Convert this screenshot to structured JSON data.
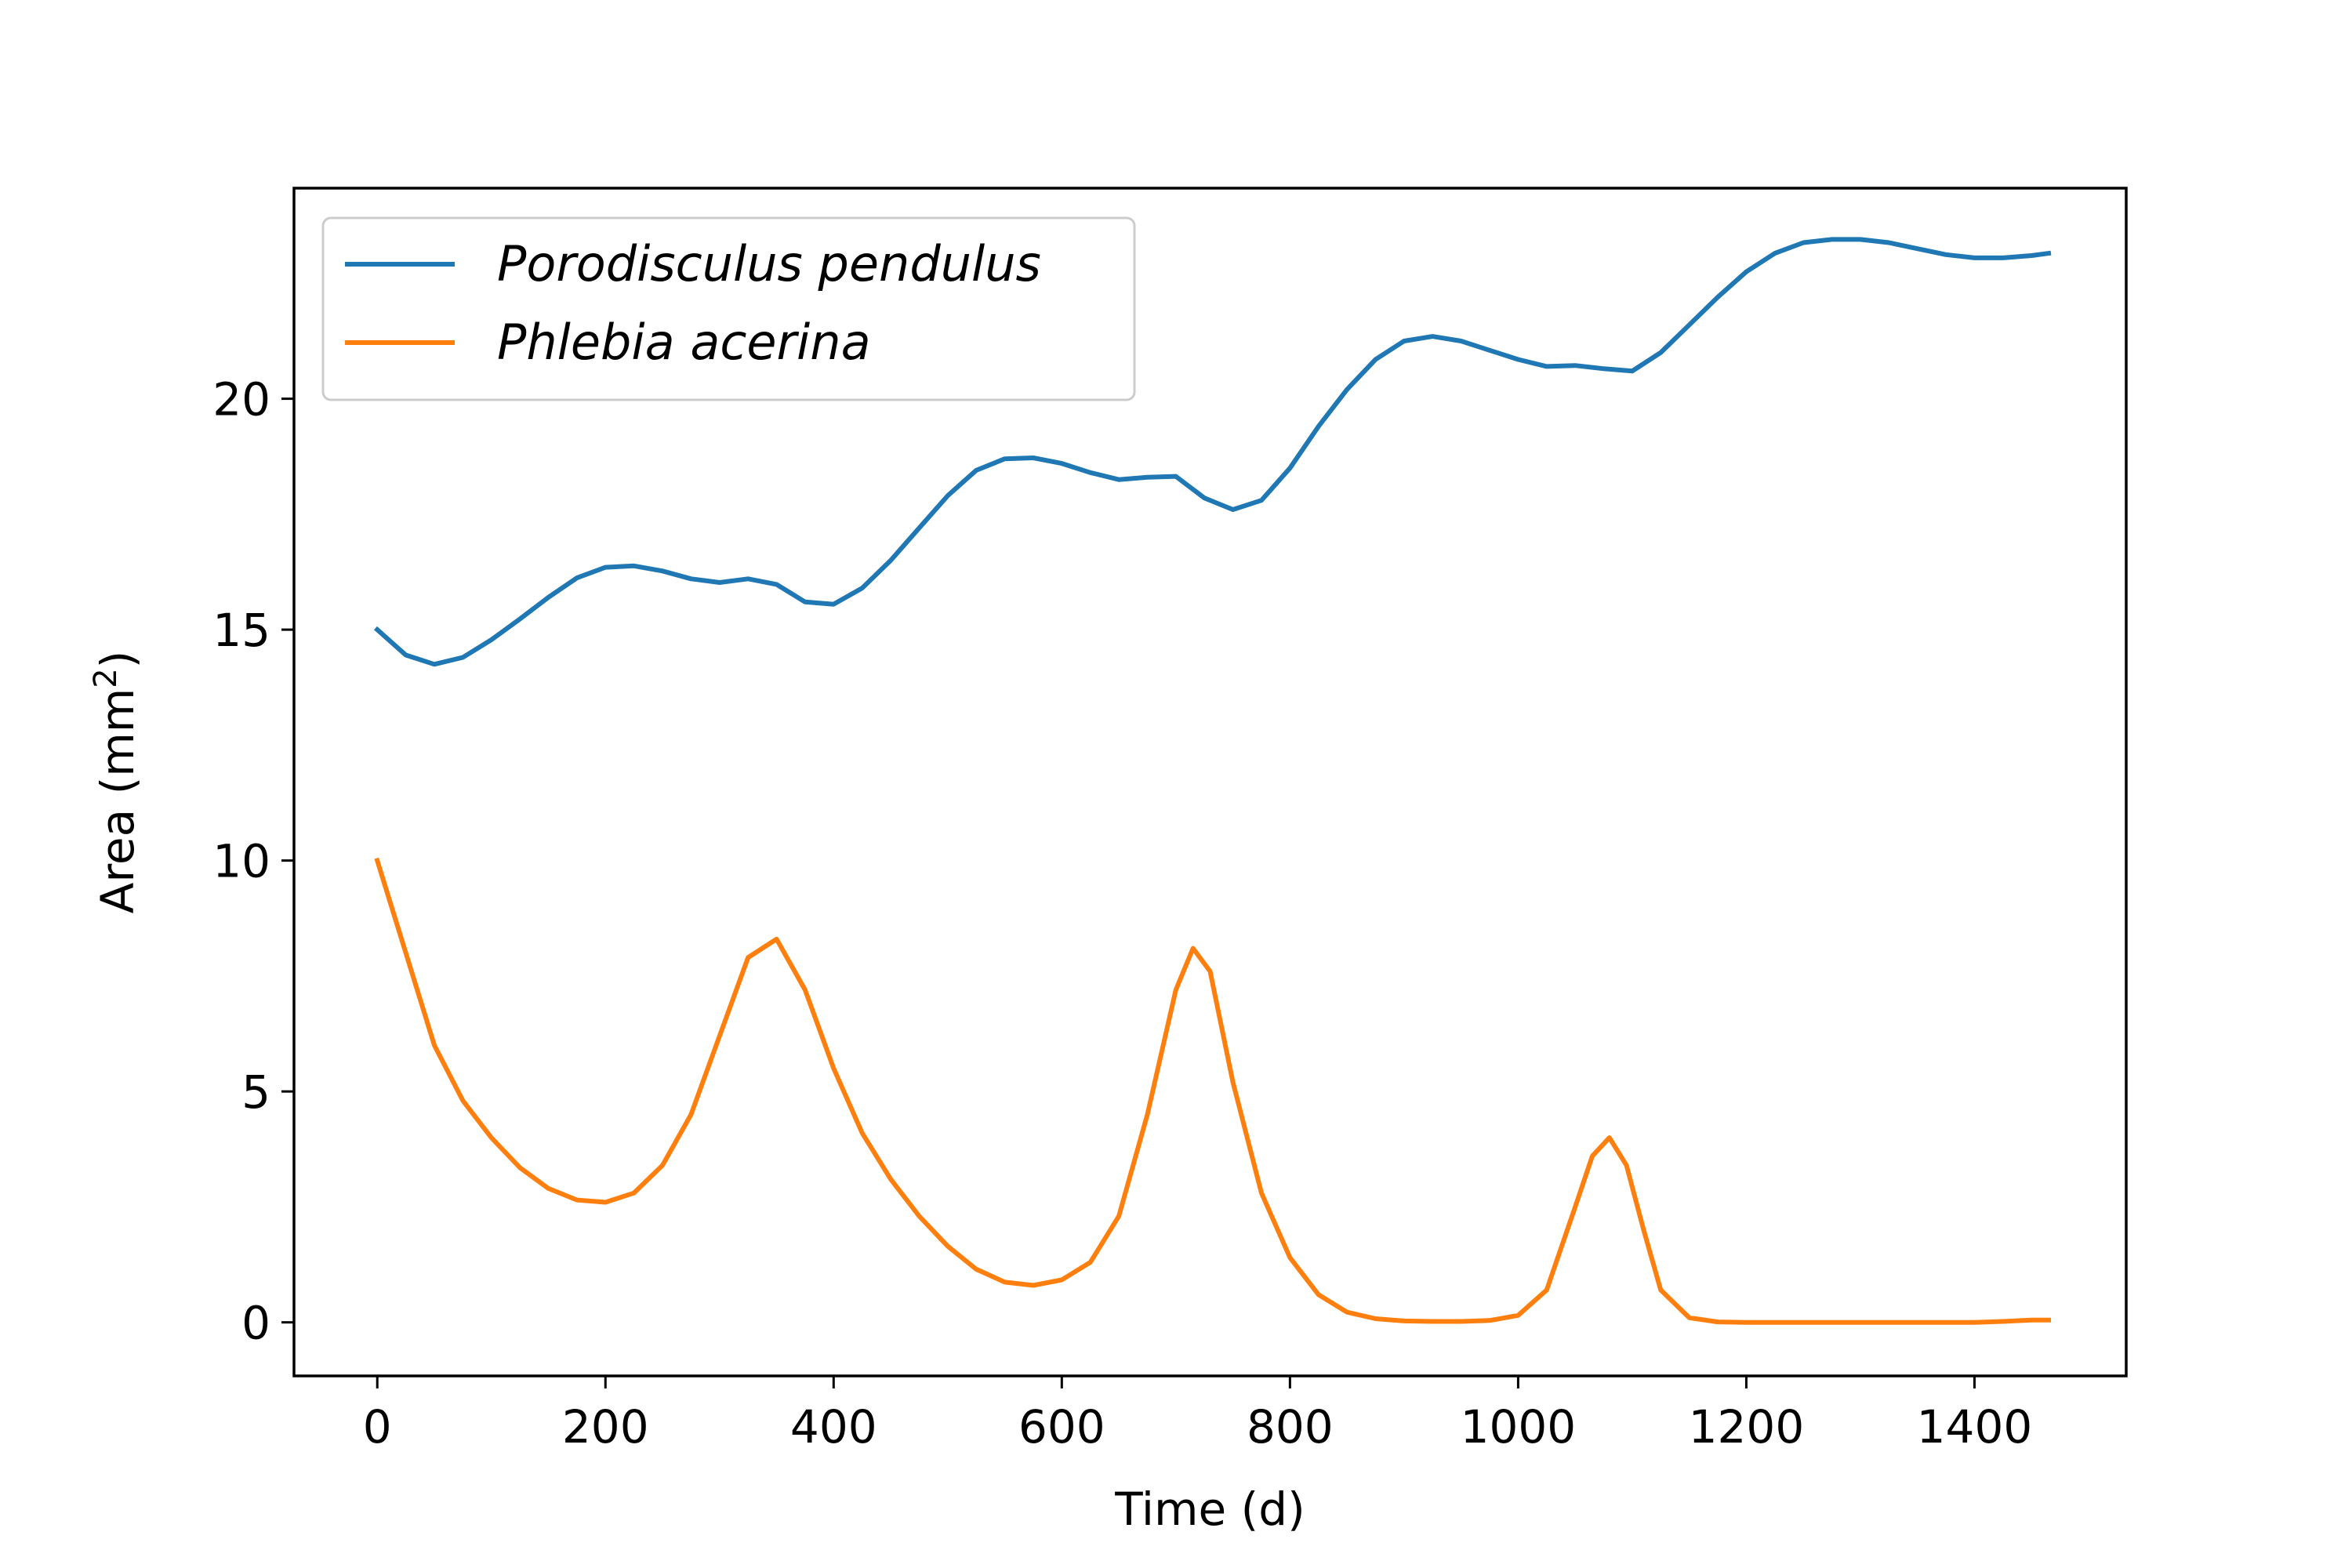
{
  "chart_data": {
    "type": "line",
    "xlabel": "Time (d)",
    "ylabel_prefix": "Area (mm",
    "ylabel_sup": "2",
    "ylabel_suffix": ")",
    "xlim": [
      -73,
      1533
    ],
    "ylim": [
      -1.16,
      24.56
    ],
    "xticks": [
      0,
      200,
      400,
      600,
      800,
      1000,
      1200,
      1400
    ],
    "yticks": [
      0,
      5,
      10,
      15,
      20
    ],
    "grid": false,
    "legend_position": "top-left",
    "series": [
      {
        "name": "Porodisculus pendulus",
        "color": "#1f77b4",
        "x": [
          0,
          25,
          50,
          75,
          100,
          125,
          150,
          175,
          200,
          225,
          250,
          275,
          300,
          325,
          350,
          375,
          400,
          425,
          450,
          475,
          500,
          525,
          550,
          575,
          600,
          625,
          650,
          675,
          700,
          725,
          750,
          775,
          800,
          825,
          850,
          875,
          900,
          925,
          950,
          975,
          1000,
          1025,
          1050,
          1075,
          1100,
          1125,
          1150,
          1175,
          1200,
          1225,
          1250,
          1275,
          1300,
          1325,
          1350,
          1375,
          1400,
          1425,
          1450,
          1465
        ],
        "y": [
          15.0,
          14.45,
          14.25,
          14.4,
          14.78,
          15.23,
          15.7,
          16.12,
          16.35,
          16.38,
          16.27,
          16.1,
          16.02,
          16.1,
          15.98,
          15.6,
          15.55,
          15.9,
          16.5,
          17.2,
          17.9,
          18.45,
          18.7,
          18.72,
          18.6,
          18.4,
          18.25,
          18.3,
          18.32,
          17.85,
          17.6,
          17.8,
          18.5,
          19.4,
          20.2,
          20.85,
          21.25,
          21.35,
          21.25,
          21.05,
          20.85,
          20.7,
          20.72,
          20.65,
          20.6,
          21.0,
          21.6,
          22.2,
          22.75,
          23.15,
          23.38,
          23.45,
          23.45,
          23.38,
          23.25,
          23.12,
          23.05,
          23.05,
          23.1,
          23.15
        ]
      },
      {
        "name": "Phlebia acerina",
        "color": "#ff7f0e",
        "x": [
          0,
          25,
          50,
          75,
          100,
          125,
          150,
          175,
          200,
          225,
          250,
          275,
          300,
          325,
          350,
          375,
          400,
          425,
          450,
          475,
          500,
          525,
          550,
          575,
          600,
          625,
          650,
          675,
          700,
          715,
          730,
          750,
          775,
          800,
          825,
          850,
          875,
          900,
          925,
          950,
          975,
          1000,
          1025,
          1050,
          1065,
          1080,
          1095,
          1110,
          1125,
          1150,
          1175,
          1200,
          1250,
          1300,
          1350,
          1400,
          1425,
          1450,
          1465
        ],
        "y": [
          10.0,
          8.0,
          6.0,
          4.8,
          4.0,
          3.35,
          2.9,
          2.65,
          2.6,
          2.8,
          3.4,
          4.5,
          6.2,
          7.9,
          8.3,
          7.2,
          5.5,
          4.1,
          3.1,
          2.3,
          1.65,
          1.15,
          0.87,
          0.8,
          0.92,
          1.3,
          2.3,
          4.5,
          7.2,
          8.1,
          7.6,
          5.2,
          2.8,
          1.4,
          0.6,
          0.22,
          0.08,
          0.03,
          0.02,
          0.02,
          0.04,
          0.15,
          0.7,
          2.5,
          3.6,
          4.0,
          3.4,
          2.0,
          0.7,
          0.1,
          0.01,
          0.0,
          0.0,
          0.0,
          0.0,
          0.0,
          0.02,
          0.05,
          0.05
        ]
      }
    ]
  }
}
